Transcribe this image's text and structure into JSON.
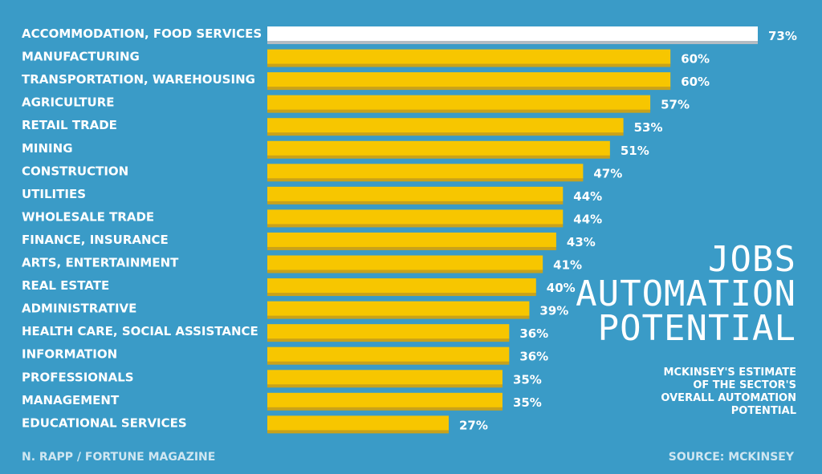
{
  "chart_data": {
    "type": "bar",
    "orientation": "horizontal",
    "title_lines": [
      "JOBS",
      "AUTOMATION",
      "POTENTIAL"
    ],
    "subtitle_lines": [
      "MCKINSEY'S ESTIMATE",
      "OF THE SECTOR'S",
      "OVERALL AUTOMATION",
      "POTENTIAL"
    ],
    "categories": [
      "ACCOMMODATION, FOOD SERVICES",
      "MANUFACTURING",
      "TRANSPORTATION, WAREHOUSING",
      "AGRICULTURE",
      "RETAIL TRADE",
      "MINING",
      "CONSTRUCTION",
      "UTILITIES",
      "WHOLESALE TRADE",
      "FINANCE, INSURANCE",
      "ARTS, ENTERTAINMENT",
      "REAL ESTATE",
      "ADMINISTRATIVE",
      "HEALTH CARE, SOCIAL ASSISTANCE",
      "INFORMATION",
      "PROFESSIONALS",
      "MANAGEMENT",
      "EDUCATIONAL SERVICES"
    ],
    "values": [
      73,
      60,
      60,
      57,
      53,
      51,
      47,
      44,
      44,
      43,
      41,
      40,
      39,
      36,
      36,
      35,
      35,
      27
    ],
    "value_labels": [
      "73%",
      "60%",
      "60%",
      "57%",
      "53%",
      "51%",
      "47%",
      "44%",
      "44%",
      "43%",
      "41%",
      "40%",
      "39%",
      "36%",
      "36%",
      "35%",
      "35%",
      "27%"
    ],
    "highlight_index": 0,
    "xlim": [
      0,
      73
    ],
    "grid": false,
    "legend": "none",
    "colors": {
      "background": "#3a9bc7",
      "bar": "#f7c600",
      "bar_shadow": "#c9a21a",
      "highlight": "#ffffff",
      "highlight_shadow": "#b4bcc3",
      "text": "#ffffff"
    }
  },
  "footer": {
    "credit": "N. RAPP / FORTUNE MAGAZINE",
    "source": "SOURCE: MCKINSEY"
  }
}
